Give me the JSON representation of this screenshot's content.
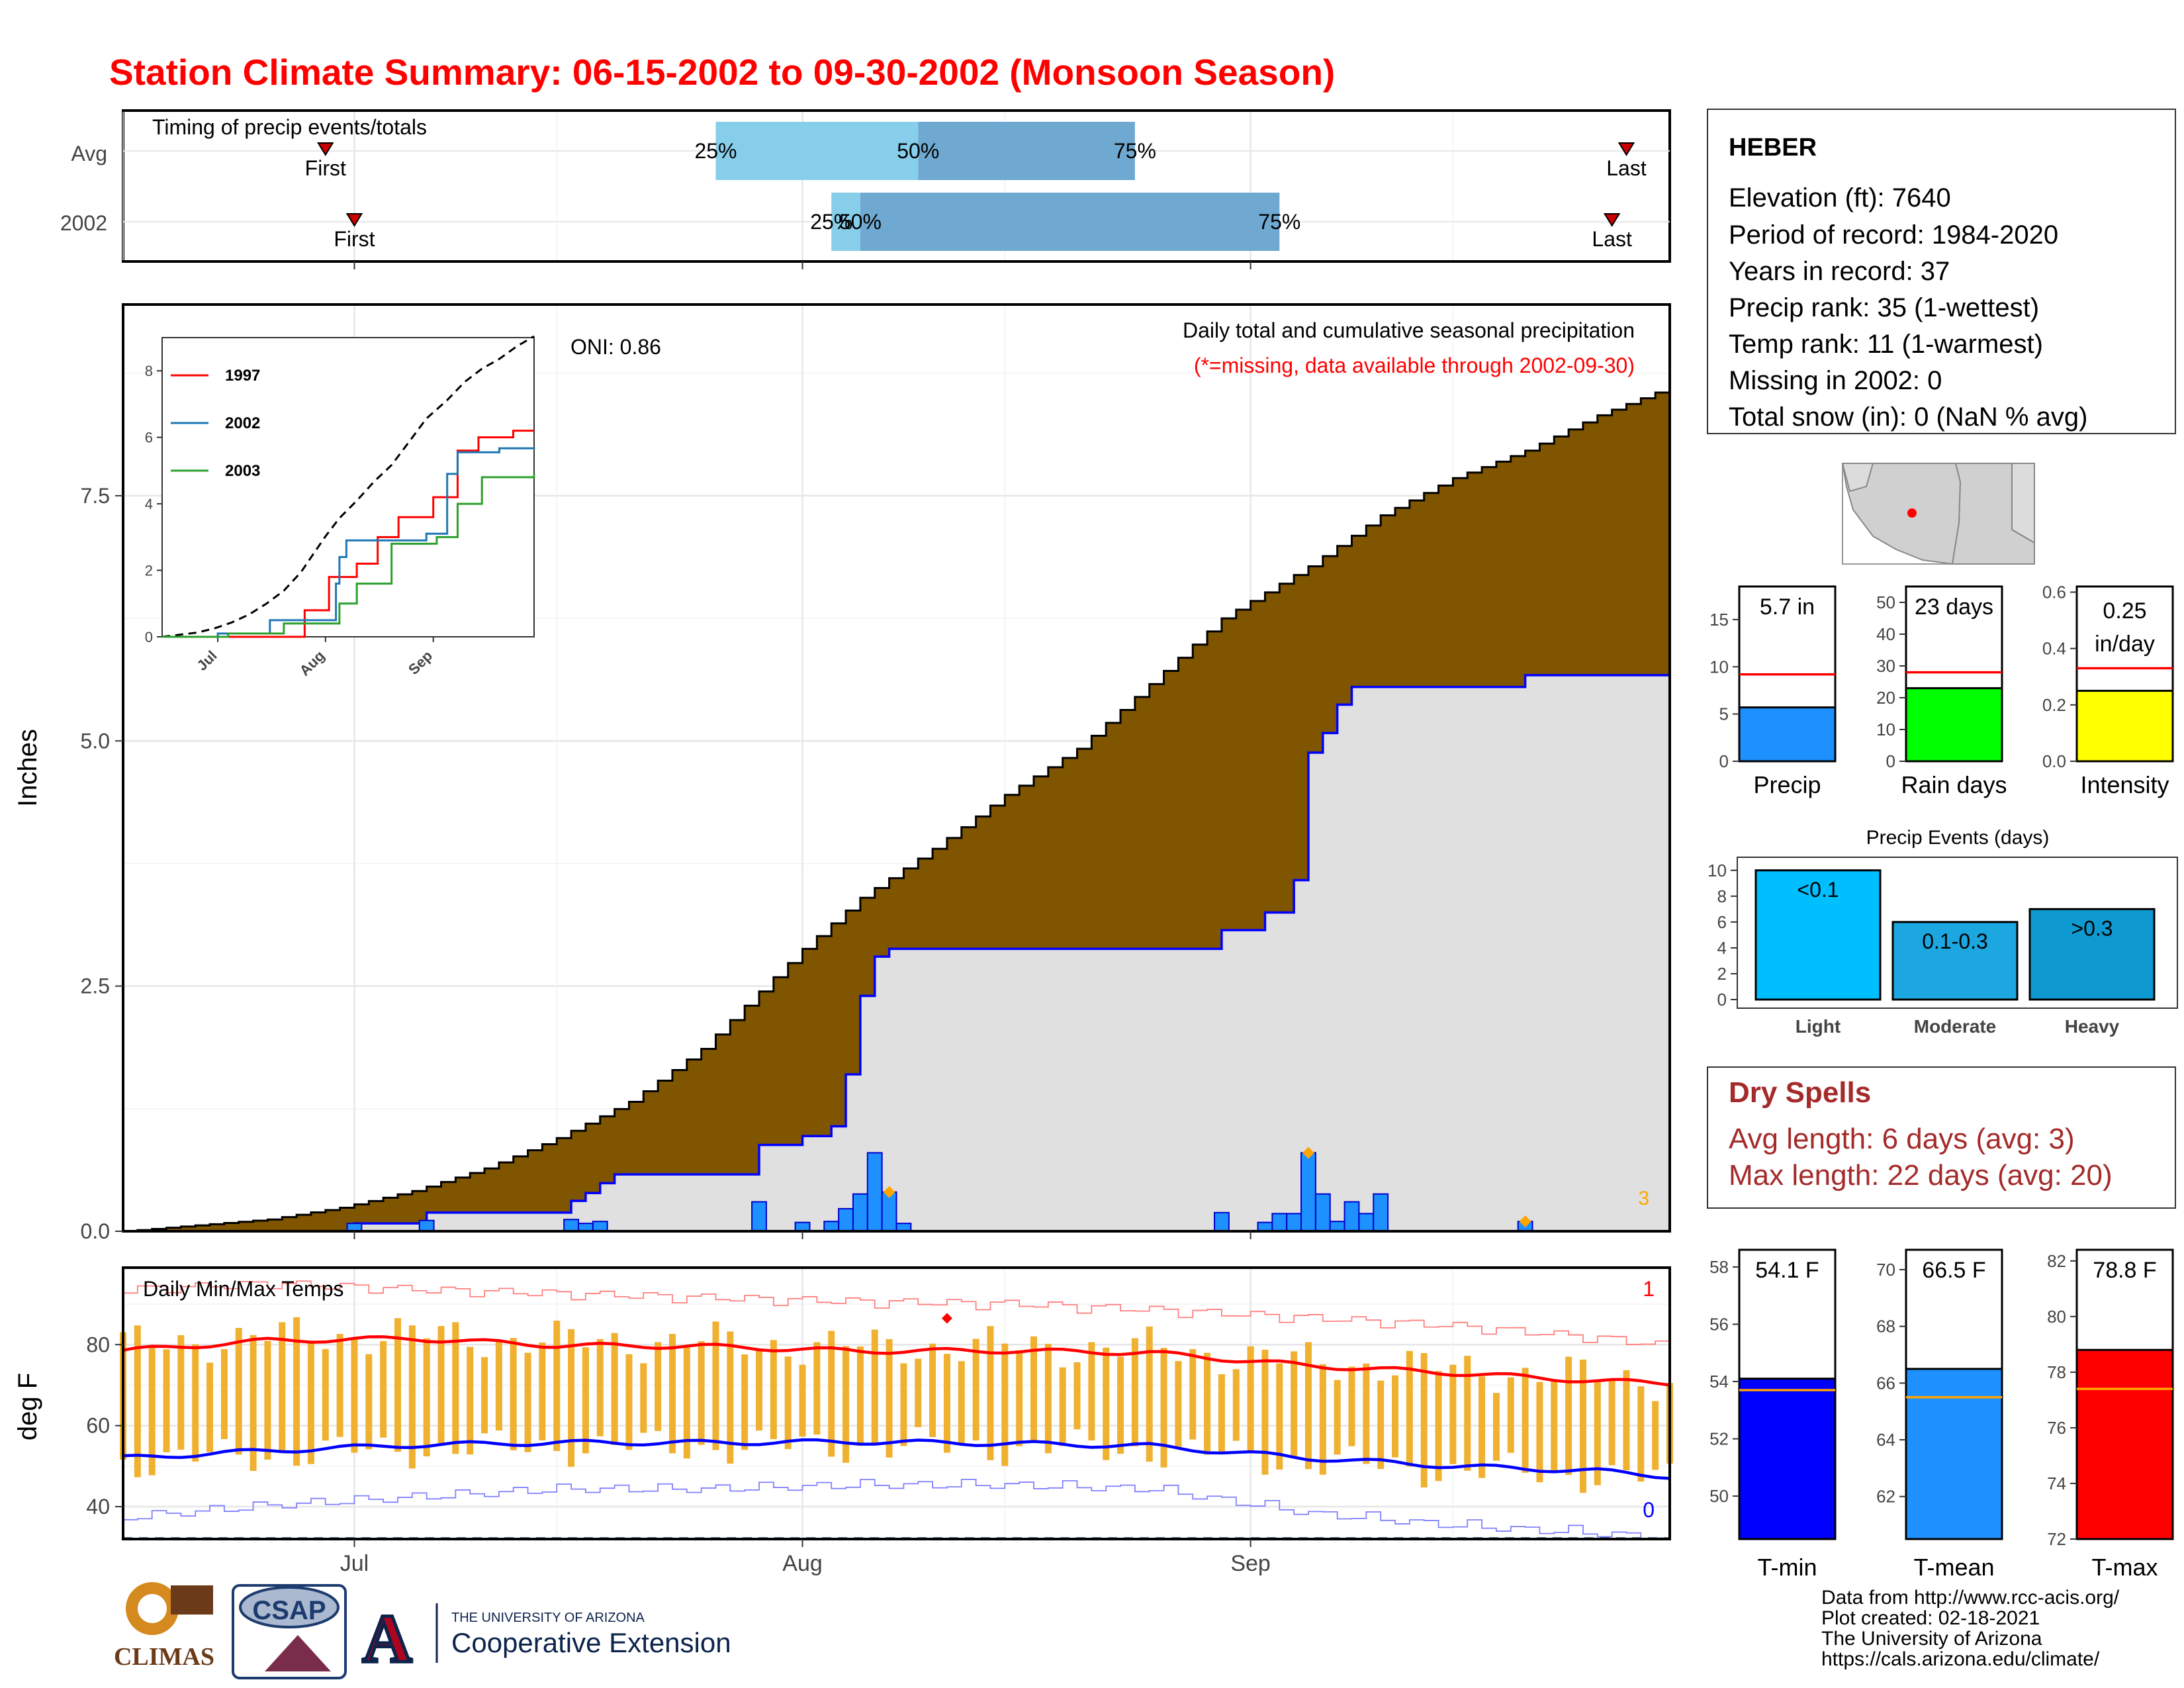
{
  "title": "Station Climate Summary: 06-15-2002 to 09-30-2002 (Monsoon Season)",
  "colors": {
    "title": "#ff0000",
    "cumulative_avg_fill": "#7f5500",
    "current_fill": "#e0e0e0",
    "current_line": "#0000ff",
    "daily_bar": "#1e90ff",
    "temp_bar": "#f0b030",
    "timing_light": "#87ceeb",
    "timing_dark": "#6fa8d0",
    "dry_spell": "#a52a2a"
  },
  "month_labels": [
    "Jul",
    "Aug",
    "Sep"
  ],
  "timing": {
    "title": "Timing of precip events/totals",
    "rows": [
      {
        "label": "Avg",
        "first_label": "First",
        "last_label": "Last",
        "first": "06-29",
        "p25": "07-26",
        "p50": "08-09",
        "p75": "08-24",
        "last": "09-27"
      },
      {
        "label": "2002",
        "first_label": "First",
        "last_label": "Last",
        "first": "07-01",
        "p25": "08-03",
        "p50": "08-05",
        "p75": "09-03",
        "last": "09-26"
      }
    ],
    "pct_labels": [
      "25%",
      "50%",
      "75%"
    ]
  },
  "precip_panel": {
    "ylabel": "Inches",
    "yticks": [
      "0.0",
      "2.5",
      "5.0",
      "7.5"
    ],
    "ylim": [
      0,
      9.45
    ],
    "subtitle": "Daily total and cumulative seasonal precipitation",
    "missing_note": "(*=missing, data available through 2002-09-30)",
    "oni": "ONI: 0.86",
    "corner_count": "3"
  },
  "inset": {
    "yticks": [
      "0",
      "2",
      "4",
      "6",
      "8"
    ],
    "xticks": [
      "Jul",
      "Aug",
      "Sep"
    ],
    "legend": [
      {
        "year": "1997",
        "color": "#ff0000"
      },
      {
        "year": "2002",
        "color": "#1f77b4"
      },
      {
        "year": "2003",
        "color": "#2ca02c"
      }
    ]
  },
  "temp_panel": {
    "ylabel": "deg F",
    "title": "Daily Min/Max Temps",
    "yticks": [
      "40",
      "60",
      "80"
    ],
    "ylim": [
      32,
      99
    ],
    "record_max_count": "1",
    "record_min_count": "0"
  },
  "station": {
    "name": "HEBER",
    "lines": [
      "Elevation (ft): 7640",
      "Period of record: 1984-2020",
      "Years in record: 37",
      "Precip rank: 35 (1-wettest)",
      "Temp rank: 11 (1-warmest)",
      "Missing in 2002: 0",
      "Total snow (in): 0 (NaN % avg)"
    ]
  },
  "summary_bars": [
    {
      "label": "Precip",
      "value_text": "5.7 in",
      "value": 5.7,
      "avg": 9.2,
      "ymax": 18.5,
      "ticks": [
        "0",
        "5",
        "10",
        "15"
      ],
      "tick_values": [
        0,
        5,
        10,
        15
      ],
      "color": "#1e90ff"
    },
    {
      "label": "Rain days",
      "value_text": "23 days",
      "value": 23,
      "avg": 28,
      "ymax": 55,
      "ticks": [
        "0",
        "10",
        "20",
        "30",
        "40",
        "50"
      ],
      "tick_values": [
        0,
        10,
        20,
        30,
        40,
        50
      ],
      "color": "#00ff00"
    },
    {
      "label": "Intensity",
      "value_text_1": "0.25",
      "value_text_2": "in/day",
      "value": 0.25,
      "avg": 0.33,
      "ymax": 0.62,
      "ticks": [
        "0.0",
        "0.2",
        "0.4",
        "0.6"
      ],
      "tick_values": [
        0,
        0.2,
        0.4,
        0.6
      ],
      "color": "#ffff00"
    }
  ],
  "events": {
    "title": "Precip Events (days)",
    "yticks": [
      "0",
      "2",
      "4",
      "6",
      "8",
      "10"
    ],
    "bars": [
      {
        "category": "Light",
        "label": "<0.1",
        "value": 10,
        "color": "#00bfff"
      },
      {
        "category": "Moderate",
        "label": "0.1-0.3",
        "value": 6,
        "color": "#1ca7e0"
      },
      {
        "category": "Heavy",
        "label": ">0.3",
        "value": 7,
        "color": "#0e9ad0"
      }
    ]
  },
  "dry_spells": {
    "title": "Dry Spells",
    "avg": "Avg length: 6 days (avg: 3)",
    "max": "Max length: 22 days (avg: 20)"
  },
  "temp_bars": [
    {
      "label": "T-min",
      "value_text": "54.1 F",
      "value": 54.1,
      "avg": 53.7,
      "ylim": [
        48.5,
        58.6
      ],
      "ticks": [
        "50",
        "52",
        "54",
        "56",
        "58"
      ],
      "tick_values": [
        50,
        52,
        54,
        56,
        58
      ],
      "color": "#0000ff"
    },
    {
      "label": "T-mean",
      "value_text": "66.5 F",
      "value": 66.5,
      "avg": 65.5,
      "ylim": [
        60.5,
        70.7
      ],
      "ticks": [
        "62",
        "64",
        "66",
        "68",
        "70"
      ],
      "tick_values": [
        62,
        64,
        66,
        68,
        70
      ],
      "color": "#1e90ff"
    },
    {
      "label": "T-max",
      "value_text": "78.8 F",
      "value": 78.8,
      "avg": 77.4,
      "ylim": [
        72,
        82.4
      ],
      "ticks": [
        "72",
        "74",
        "76",
        "78",
        "80",
        "82"
      ],
      "tick_values": [
        72,
        74,
        76,
        78,
        80,
        82
      ],
      "color": "#ff0000"
    }
  ],
  "footer": {
    "lines": [
      "Data from http://www.rcc-acis.org/",
      "Plot created: 02-18-2021",
      "The University of Arizona",
      "https://cals.arizona.edu/climate/"
    ],
    "climas": "CLIMAS",
    "csap": "CSAP",
    "ua_small": "THE UNIVERSITY OF ARIZONA",
    "ua_big": "Cooperative Extension"
  },
  "chart_data": {
    "type": "area",
    "x_start": "2002-06-15",
    "x_end": "2002-09-30",
    "cumulative_avg_points": [
      [
        "06-15",
        0.0
      ],
      [
        "06-20",
        0.06
      ],
      [
        "06-25",
        0.12
      ],
      [
        "06-30",
        0.24
      ],
      [
        "07-05",
        0.41
      ],
      [
        "07-10",
        0.64
      ],
      [
        "07-15",
        0.95
      ],
      [
        "07-20",
        1.32
      ],
      [
        "07-25",
        1.86
      ],
      [
        "07-28",
        2.3
      ],
      [
        "08-01",
        2.88
      ],
      [
        "08-05",
        3.4
      ],
      [
        "08-10",
        3.9
      ],
      [
        "08-15",
        4.45
      ],
      [
        "08-20",
        4.92
      ],
      [
        "08-25",
        5.58
      ],
      [
        "08-30",
        6.25
      ],
      [
        "09-05",
        6.78
      ],
      [
        "09-10",
        7.3
      ],
      [
        "09-15",
        7.68
      ],
      [
        "09-20",
        7.96
      ],
      [
        "09-25",
        8.32
      ],
      [
        "09-30",
        8.61
      ]
    ],
    "cumulative_2002_steps": [
      [
        "06-15",
        0.0
      ],
      [
        "07-01",
        0.08
      ],
      [
        "07-06",
        0.19
      ],
      [
        "07-16",
        0.31
      ],
      [
        "07-17",
        0.39
      ],
      [
        "07-18",
        0.49
      ],
      [
        "07-19",
        0.58
      ],
      [
        "07-29",
        0.88
      ],
      [
        "08-01",
        0.97
      ],
      [
        "08-03",
        1.07
      ],
      [
        "08-04",
        1.6
      ],
      [
        "08-05",
        2.4
      ],
      [
        "08-06",
        2.8
      ],
      [
        "08-07",
        2.88
      ],
      [
        "08-30",
        3.07
      ],
      [
        "09-02",
        3.25
      ],
      [
        "09-04",
        3.58
      ],
      [
        "09-05",
        4.88
      ],
      [
        "09-06",
        5.08
      ],
      [
        "09-07",
        5.37
      ],
      [
        "09-08",
        5.55
      ],
      [
        "09-20",
        5.67
      ],
      [
        "09-30",
        5.7
      ]
    ],
    "daily_precip": [
      [
        "07-01",
        0.08
      ],
      [
        "07-06",
        0.11
      ],
      [
        "07-16",
        0.12
      ],
      [
        "07-17",
        0.08
      ],
      [
        "07-18",
        0.1
      ],
      [
        "07-29",
        0.3
      ],
      [
        "08-01",
        0.09
      ],
      [
        "08-03",
        0.1
      ],
      [
        "08-04",
        0.23
      ],
      [
        "08-05",
        0.38
      ],
      [
        "08-06",
        0.8
      ],
      [
        "08-07",
        0.4
      ],
      [
        "08-08",
        0.08
      ],
      [
        "08-30",
        0.19
      ],
      [
        "09-02",
        0.09
      ],
      [
        "09-03",
        0.18
      ],
      [
        "09-04",
        0.18
      ],
      [
        "09-05",
        0.8
      ],
      [
        "09-06",
        0.38
      ],
      [
        "09-07",
        0.1
      ],
      [
        "09-08",
        0.3
      ],
      [
        "09-09",
        0.18
      ],
      [
        "09-10",
        0.38
      ],
      [
        "09-20",
        0.1
      ]
    ],
    "precip_markers": [
      [
        "08-07",
        0.4
      ],
      [
        "09-05",
        0.8
      ],
      [
        "09-20",
        0.1
      ]
    ],
    "tmax_avg_points": [
      [
        "06-15",
        78.5
      ],
      [
        "06-25",
        81.0
      ],
      [
        "07-05",
        81.5
      ],
      [
        "07-15",
        79.8
      ],
      [
        "07-25",
        79.6
      ],
      [
        "08-05",
        78.4
      ],
      [
        "08-15",
        78.5
      ],
      [
        "08-25",
        78.0
      ],
      [
        "09-05",
        74.8
      ],
      [
        "09-15",
        73.0
      ],
      [
        "09-25",
        71.0
      ],
      [
        "09-30",
        70.5
      ]
    ],
    "tmin_avg_points": [
      [
        "06-15",
        52.0
      ],
      [
        "06-25",
        53.8
      ],
      [
        "07-05",
        55.2
      ],
      [
        "07-15",
        55.8
      ],
      [
        "07-25",
        55.8
      ],
      [
        "08-05",
        56.0
      ],
      [
        "08-15",
        55.6
      ],
      [
        "08-25",
        55.0
      ],
      [
        "09-05",
        52.0
      ],
      [
        "09-15",
        50.0
      ],
      [
        "09-25",
        48.8
      ],
      [
        "09-30",
        47.5
      ]
    ],
    "tmax_record_points": [
      [
        "06-15",
        92
      ],
      [
        "06-25",
        93.5
      ],
      [
        "07-05",
        92
      ],
      [
        "07-15",
        91
      ],
      [
        "07-25",
        90
      ],
      [
        "08-05",
        89
      ],
      [
        "08-15",
        88.5
      ],
      [
        "08-25",
        87
      ],
      [
        "09-05",
        85
      ],
      [
        "09-15",
        83
      ],
      [
        "09-25",
        80
      ],
      [
        "09-30",
        78
      ]
    ],
    "tmin_record_points": [
      [
        "06-15",
        39
      ],
      [
        "06-25",
        42
      ],
      [
        "07-05",
        44
      ],
      [
        "07-15",
        46
      ],
      [
        "07-25",
        46
      ],
      [
        "08-05",
        47
      ],
      [
        "08-15",
        47
      ],
      [
        "08-25",
        46
      ],
      [
        "09-05",
        40
      ],
      [
        "09-15",
        37
      ],
      [
        "09-25",
        35
      ],
      [
        "09-30",
        34
      ]
    ],
    "temp_record_marker": [
      "08-11",
      86.5
    ]
  }
}
